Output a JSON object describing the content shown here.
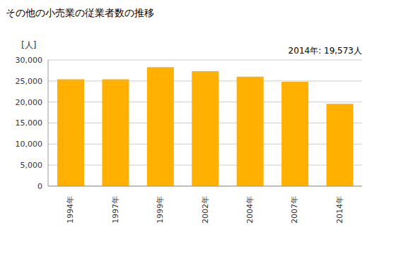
{
  "chart_data": {
    "type": "bar",
    "title": "その他の小売業の従業者数の推移",
    "y_label": "[人]",
    "annotation": "2014年: 19,573人",
    "categories": [
      "1994年",
      "1997年",
      "1999年",
      "2002年",
      "2004年",
      "2007年",
      "2014年"
    ],
    "values": [
      25400,
      25400,
      28300,
      27300,
      26000,
      24800,
      19573
    ],
    "color": "#ffb000",
    "ylim": [
      0,
      30000
    ],
    "yticks": [
      0,
      {
        "value": 5000,
        "label": "5,000"
      },
      {
        "value": 10000,
        "label": "10,000"
      },
      {
        "value": 15000,
        "label": "15,000"
      },
      {
        "value": 20000,
        "label": "20,000"
      },
      {
        "value": 25000,
        "label": "25,000"
      },
      {
        "value": 30000,
        "label": "30,000"
      }
    ],
    "grid": true
  }
}
